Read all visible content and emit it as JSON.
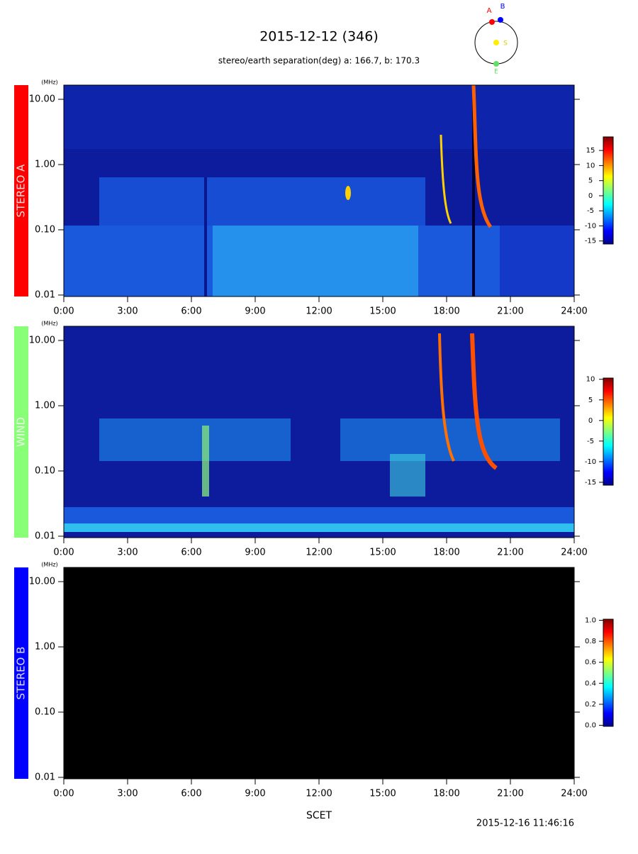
{
  "header": {
    "title": "2015-12-12 (346)",
    "subtitle": "stereo/earth separation(deg) a: 166.7, b: 170.3"
  },
  "orbit_labels": [
    "A",
    "B",
    "S",
    "E"
  ],
  "chart_data": [
    {
      "type": "spectrogram",
      "label": "STEREO A",
      "color": "#ff0000",
      "y_unit": "(MHz)",
      "log_y": true,
      "ylim": [
        0.0095,
        16.5
      ],
      "yticks": [
        0.01,
        {
          "value": 0.1,
          "label": "0.10"
        },
        {
          "value": 1,
          "label": "1.00"
        },
        {
          "value": 10,
          "label": "10.00"
        }
      ],
      "xlim": [
        0,
        24
      ],
      "xticks": [
        {
          "value": 0,
          "label": "0:00"
        },
        {
          "value": 3,
          "label": "3:00"
        },
        {
          "value": 6,
          "label": "6:00"
        },
        {
          "value": 9,
          "label": "9:00"
        },
        {
          "value": 12,
          "label": "12:00"
        },
        {
          "value": 15,
          "label": "15:00"
        },
        {
          "value": 18,
          "label": "18:00"
        },
        {
          "value": 21,
          "label": "21:00"
        },
        {
          "value": 24,
          "label": "24:00"
        }
      ],
      "colorbar": {
        "clim": [
          -16,
          19.5
        ],
        "ticks": [
          -15,
          -10,
          -5,
          0,
          5,
          10,
          15
        ]
      }
    },
    {
      "type": "spectrogram",
      "label": "WIND",
      "color": "#88ff77",
      "y_unit": "(MHz)",
      "log_y": true,
      "ylim": [
        0.0095,
        16.5
      ],
      "yticks": [
        0.01,
        {
          "value": 0.1,
          "label": "0.10"
        },
        {
          "value": 1,
          "label": "1.00"
        },
        {
          "value": 10,
          "label": "10.00"
        }
      ],
      "xlim": [
        0,
        24
      ],
      "xticks": [
        {
          "value": 0,
          "label": "0:00"
        },
        {
          "value": 3,
          "label": "3:00"
        },
        {
          "value": 6,
          "label": "6:00"
        },
        {
          "value": 9,
          "label": "9:00"
        },
        {
          "value": 12,
          "label": "12:00"
        },
        {
          "value": 15,
          "label": "15:00"
        },
        {
          "value": 18,
          "label": "18:00"
        },
        {
          "value": 21,
          "label": "21:00"
        },
        {
          "value": 24,
          "label": "24:00"
        }
      ],
      "colorbar": {
        "clim": [
          -15.7,
          10.3
        ],
        "ticks": [
          -15,
          -10,
          -5,
          0,
          5,
          10
        ]
      }
    },
    {
      "type": "spectrogram",
      "label": "STEREO B",
      "color": "#0000ff",
      "y_unit": "(MHz)",
      "log_y": true,
      "ylim": [
        0.0095,
        16.5
      ],
      "yticks": [
        0.01,
        {
          "value": 0.1,
          "label": "0.10"
        },
        {
          "value": 1,
          "label": "1.00"
        },
        {
          "value": 10,
          "label": "10.00"
        }
      ],
      "xlim": [
        0,
        24
      ],
      "xticks": [
        {
          "value": 0,
          "label": "0:00"
        },
        {
          "value": 3,
          "label": "3:00"
        },
        {
          "value": 6,
          "label": "6:00"
        },
        {
          "value": 9,
          "label": "9:00"
        },
        {
          "value": 12,
          "label": "12:00"
        },
        {
          "value": 15,
          "label": "15:00"
        },
        {
          "value": 18,
          "label": "18:00"
        },
        {
          "value": 21,
          "label": "21:00"
        },
        {
          "value": 24,
          "label": "24:00"
        }
      ],
      "colorbar": {
        "clim": [
          -0.01,
          1.01
        ],
        "ticks": [
          {
            "value": 0,
            "label": "0.0"
          },
          {
            "value": 0.2,
            "label": "0.2"
          },
          {
            "value": 0.4,
            "label": "0.4"
          },
          {
            "value": 0.6,
            "label": "0.6"
          },
          {
            "value": 0.8,
            "label": "0.8"
          },
          {
            "value": 1,
            "label": "1.0"
          }
        ]
      }
    }
  ],
  "x_label": "SCET",
  "footer": "2015-12-16 11:46:16"
}
